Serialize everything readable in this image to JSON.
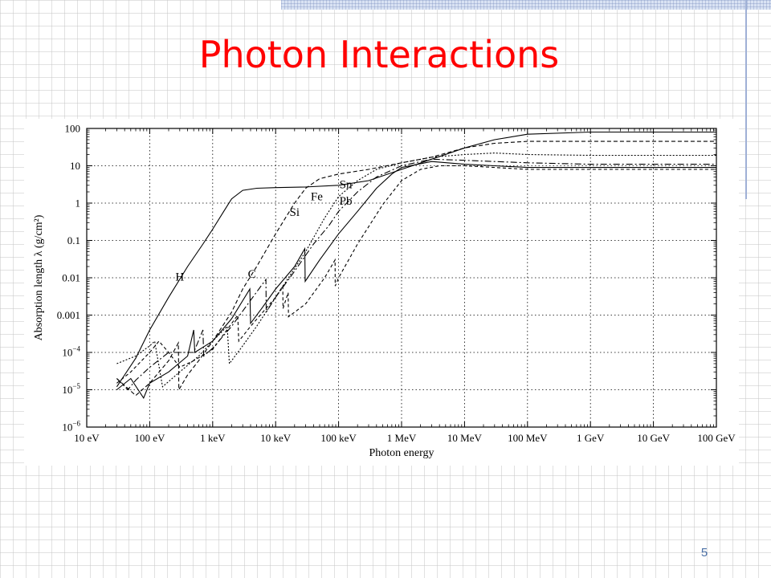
{
  "slide": {
    "title": "Photon Interactions",
    "page_number": "5"
  },
  "colors": {
    "title": "#ff0000",
    "page_number": "#4a6fa5",
    "curves": "#000000"
  },
  "chart_data": {
    "type": "line",
    "title": "",
    "xlabel": "Photon energy",
    "ylabel": "Absorption length λ  (g/cm²)",
    "x_scale": "log",
    "y_scale": "log",
    "xlim_eV": [
      10,
      100000000000.0
    ],
    "ylim": [
      1e-06,
      100
    ],
    "grid": true,
    "x_ticks": [
      {
        "v": 10,
        "label": "10 eV"
      },
      {
        "v": 100,
        "label": "100 eV"
      },
      {
        "v": 1000,
        "label": "1 keV"
      },
      {
        "v": 10000,
        "label": "10 keV"
      },
      {
        "v": 100000,
        "label": "100 keV"
      },
      {
        "v": 1000000,
        "label": "1 MeV"
      },
      {
        "v": 10000000,
        "label": "10 MeV"
      },
      {
        "v": 100000000,
        "label": "100 MeV"
      },
      {
        "v": 1000000000,
        "label": "1 GeV"
      },
      {
        "v": 10000000000,
        "label": "10 GeV"
      },
      {
        "v": 100000000000,
        "label": "100 GeV"
      }
    ],
    "y_ticks": [
      {
        "v": 100,
        "label": "100"
      },
      {
        "v": 10,
        "label": "10"
      },
      {
        "v": 1,
        "label": "1"
      },
      {
        "v": 0.1,
        "label": "0.1"
      },
      {
        "v": 0.01,
        "label": "0.01"
      },
      {
        "v": 0.001,
        "label": "0.001"
      },
      {
        "v": 0.0001,
        "label": "10",
        "exp": "−4"
      },
      {
        "v": 1e-05,
        "label": "10",
        "exp": "−5"
      },
      {
        "v": 1e-06,
        "label": "10",
        "exp": "−6"
      }
    ],
    "series": [
      {
        "name": "H",
        "dash": "",
        "label_at": [
          300,
          0.0085
        ],
        "points": [
          [
            30,
            1.2e-05
          ],
          [
            40,
            2.5e-05
          ],
          [
            60,
            7e-05
          ],
          [
            100,
            0.0004
          ],
          [
            200,
            0.003
          ],
          [
            400,
            0.02
          ],
          [
            700,
            0.08
          ],
          [
            1000,
            0.2
          ],
          [
            1500,
            0.6
          ],
          [
            2000,
            1.3
          ],
          [
            3000,
            2.2
          ],
          [
            5000,
            2.5
          ],
          [
            10000,
            2.6
          ],
          [
            30000,
            2.7
          ],
          [
            100000,
            3
          ],
          [
            300000,
            4
          ],
          [
            1000000,
            8
          ],
          [
            3000000,
            15
          ],
          [
            10000000,
            30
          ],
          [
            30000000,
            50
          ],
          [
            100000000,
            70
          ],
          [
            1000000000,
            80
          ],
          [
            100000000000,
            80
          ]
        ]
      },
      {
        "name": "C",
        "dash": "5,3",
        "label_at": [
          4200,
          0.01
        ],
        "points": [
          [
            30,
            2e-05
          ],
          [
            40,
            1.3e-05
          ],
          [
            60,
            7e-06
          ],
          [
            100,
            1.5e-05
          ],
          [
            200,
            6e-05
          ],
          [
            285,
            0.00018
          ],
          [
            290,
            1e-05
          ],
          [
            400,
            2.5e-05
          ],
          [
            600,
            6e-05
          ],
          [
            1000,
            0.0002
          ],
          [
            2000,
            0.0012
          ],
          [
            3000,
            0.005
          ],
          [
            5000,
            0.02
          ],
          [
            10000,
            0.15
          ],
          [
            20000,
            1
          ],
          [
            30000,
            2.5
          ],
          [
            50000,
            4.5
          ],
          [
            100000,
            6
          ],
          [
            300000,
            8
          ],
          [
            1000000,
            12
          ],
          [
            3000000,
            17
          ],
          [
            10000000,
            30
          ],
          [
            30000000,
            40
          ],
          [
            100000000,
            45
          ],
          [
            1000000000,
            45
          ],
          [
            100000000000,
            45
          ]
        ]
      },
      {
        "name": "Si",
        "dash": "2,2",
        "label_at": [
          20000,
          0.45
        ],
        "points": [
          [
            30,
            5e-05
          ],
          [
            60,
            8e-05
          ],
          [
            100,
            0.00015
          ],
          [
            120,
            0.0002
          ],
          [
            160,
            1.2e-05
          ],
          [
            300,
            3e-05
          ],
          [
            600,
            8e-05
          ],
          [
            1000,
            0.0002
          ],
          [
            1700,
            0.0005
          ],
          [
            1840,
            5e-05
          ],
          [
            3000,
            0.00015
          ],
          [
            5000,
            0.0005
          ],
          [
            10000,
            0.003
          ],
          [
            30000,
            0.05
          ],
          [
            60000,
            0.4
          ],
          [
            100000,
            1.5
          ],
          [
            200000,
            4
          ],
          [
            400000,
            8
          ],
          [
            1000000,
            12
          ],
          [
            3000000,
            17
          ],
          [
            10000000,
            20
          ],
          [
            30000000,
            22
          ],
          [
            100000000,
            20
          ],
          [
            1000000000,
            19
          ],
          [
            100000000000,
            19
          ]
        ]
      },
      {
        "name": "Fe",
        "dash": "8,3,2,3",
        "label_at": [
          45000,
          1.2
        ],
        "points": [
          [
            30,
            2e-05
          ],
          [
            45,
            1e-05
          ],
          [
            60,
            1.8e-05
          ],
          [
            100,
            4e-05
          ],
          [
            200,
            0.0001
          ],
          [
            500,
            0.0001
          ],
          [
            700,
            0.0004
          ],
          [
            720,
            8e-05
          ],
          [
            1000,
            0.00013
          ],
          [
            2000,
            0.0005
          ],
          [
            4000,
            0.0025
          ],
          [
            7000,
            0.009
          ],
          [
            7100,
            0.0012
          ],
          [
            10000,
            0.003
          ],
          [
            20000,
            0.015
          ],
          [
            40000,
            0.08
          ],
          [
            70000,
            0.25
          ],
          [
            100000,
            0.6
          ],
          [
            200000,
            2
          ],
          [
            400000,
            5
          ],
          [
            1000000,
            10
          ],
          [
            3000000,
            15
          ],
          [
            10000000,
            14
          ],
          [
            30000000,
            13
          ],
          [
            100000000,
            12
          ],
          [
            1000000000,
            11
          ],
          [
            100000000000,
            11
          ]
        ]
      },
      {
        "name": "Sn",
        "dash": "",
        "label_at": [
          130000,
          2.5
        ],
        "points": [
          [
            30,
            1e-05
          ],
          [
            50,
            2e-05
          ],
          [
            80,
            6e-06
          ],
          [
            100,
            1.5e-05
          ],
          [
            200,
            3e-05
          ],
          [
            400,
            8e-05
          ],
          [
            500,
            0.0004
          ],
          [
            520,
            0.0001
          ],
          [
            1000,
            0.0002
          ],
          [
            2000,
            0.0008
          ],
          [
            3900,
            0.005
          ],
          [
            4000,
            0.0006
          ],
          [
            6000,
            0.0015
          ],
          [
            10000,
            0.005
          ],
          [
            20000,
            0.02
          ],
          [
            29000,
            0.06
          ],
          [
            29500,
            0.008
          ],
          [
            50000,
            0.03
          ],
          [
            100000,
            0.15
          ],
          [
            200000,
            0.6
          ],
          [
            400000,
            2.5
          ],
          [
            700000,
            6
          ],
          [
            1000000,
            9
          ],
          [
            3000000,
            13
          ],
          [
            10000000,
            11
          ],
          [
            30000000,
            10
          ],
          [
            100000000,
            9
          ],
          [
            1000000000,
            9
          ],
          [
            100000000000,
            9
          ]
        ]
      },
      {
        "name": "Pb",
        "dash": "4,3",
        "label_at": [
          130000,
          0.9
        ],
        "points": [
          [
            30,
            1.5e-05
          ],
          [
            50,
            3e-05
          ],
          [
            100,
            0.0001
          ],
          [
            140,
            0.0002
          ],
          [
            200,
            0.0001
          ],
          [
            300,
            4e-05
          ],
          [
            500,
            6e-05
          ],
          [
            1000,
            0.00012
          ],
          [
            2500,
            0.001
          ],
          [
            2600,
            0.0002
          ],
          [
            4000,
            0.0005
          ],
          [
            10000,
            0.003
          ],
          [
            13000,
            0.006
          ],
          [
            13100,
            0.0015
          ],
          [
            15800,
            0.004
          ],
          [
            16000,
            0.0009
          ],
          [
            30000,
            0.002
          ],
          [
            60000,
            0.01
          ],
          [
            88000,
            0.03
          ],
          [
            88500,
            0.006
          ],
          [
            100000,
            0.01
          ],
          [
            200000,
            0.08
          ],
          [
            500000,
            0.9
          ],
          [
            1000000,
            4
          ],
          [
            2000000,
            8
          ],
          [
            4000000,
            10
          ],
          [
            10000000,
            10
          ],
          [
            30000000,
            9
          ],
          [
            100000000,
            8
          ],
          [
            1000000000,
            8
          ],
          [
            100000000000,
            8
          ]
        ]
      }
    ]
  }
}
